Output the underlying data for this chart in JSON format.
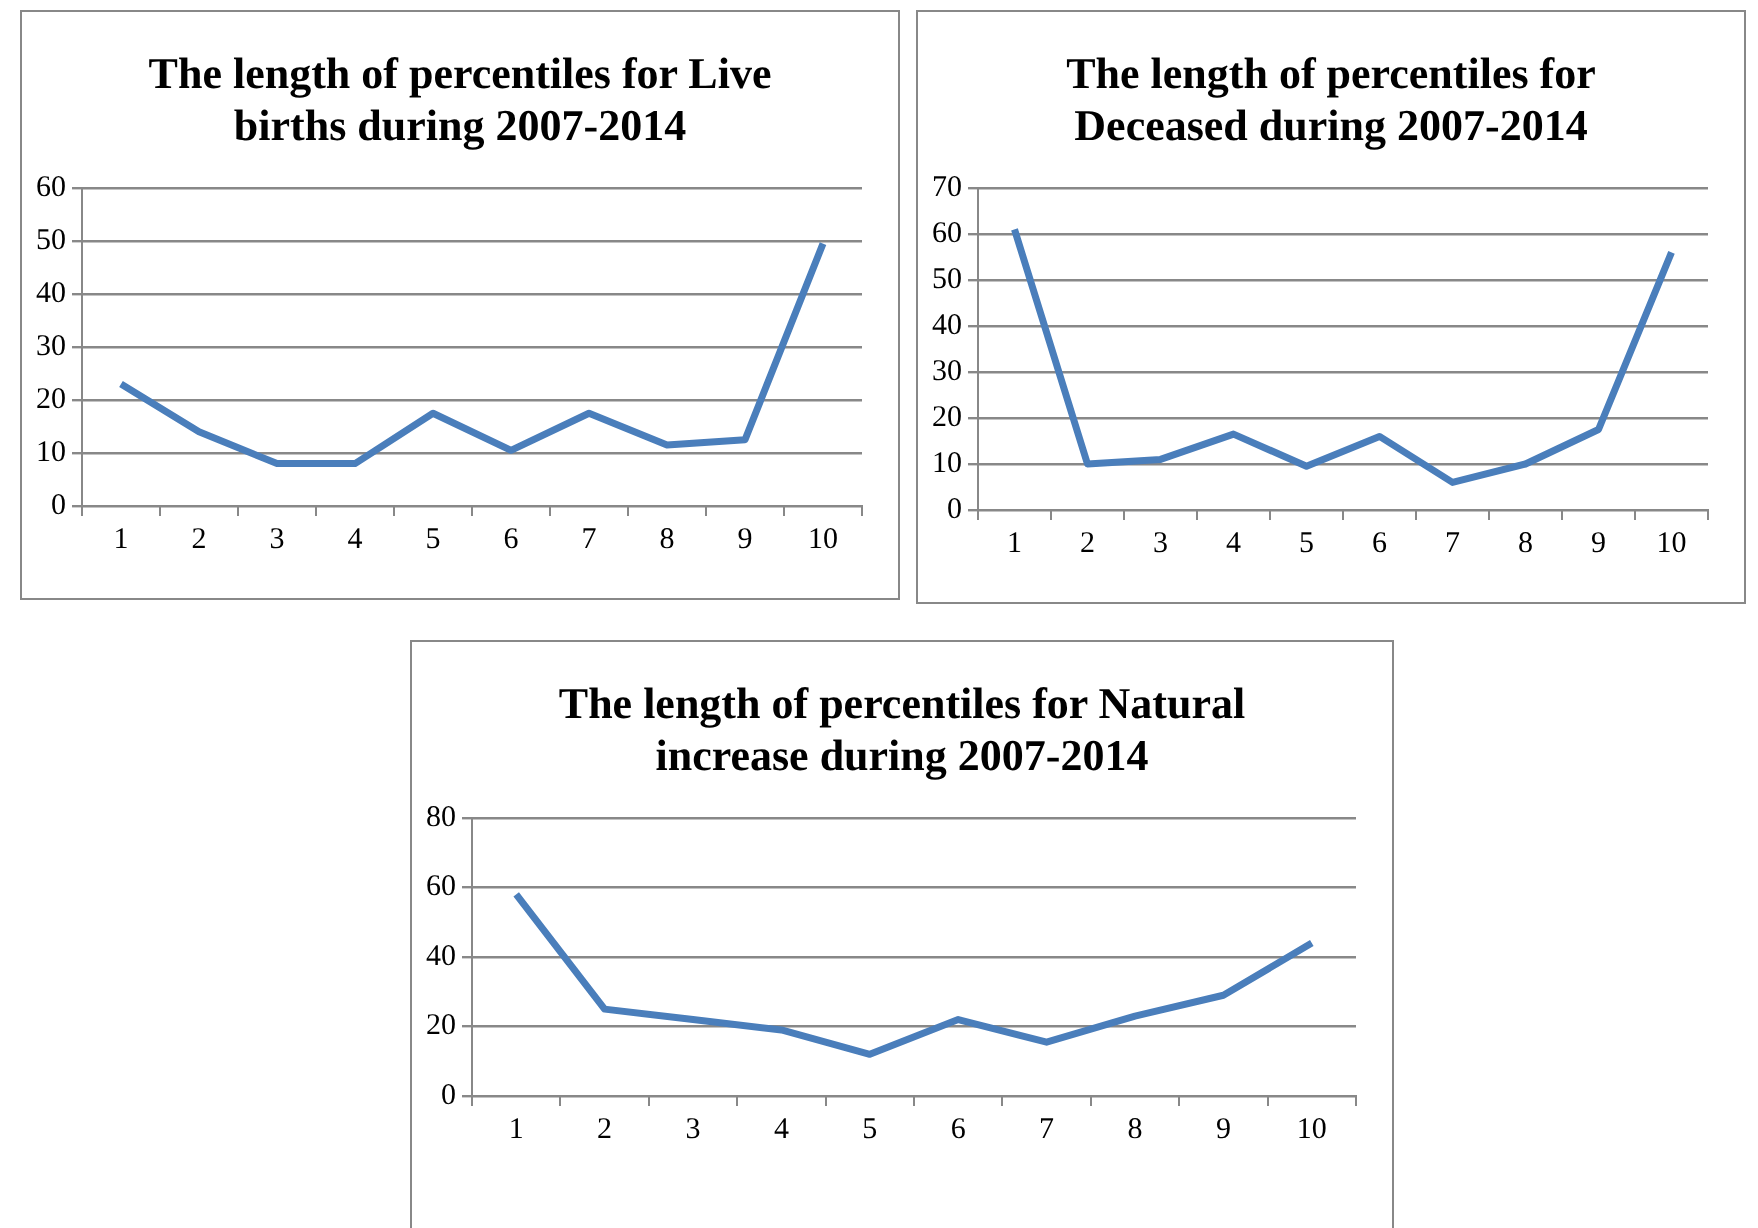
{
  "chart_data": [
    {
      "type": "line",
      "title": "The length of percentiles for Live births during 2007-2014",
      "categories": [
        "1",
        "2",
        "3",
        "4",
        "5",
        "6",
        "7",
        "8",
        "9",
        "10"
      ],
      "series": [
        {
          "color": "#4a7ebb",
          "values": [
            23,
            14,
            8,
            8,
            17.5,
            10.5,
            17.5,
            11.5,
            12.5,
            49.5
          ]
        }
      ],
      "ylim": [
        0,
        60
      ],
      "yticks": [
        0,
        10,
        20,
        30,
        40,
        50,
        60
      ],
      "grid": "y",
      "legend": false,
      "marker": "none",
      "line_style": "solid"
    },
    {
      "type": "line",
      "title": "The length of percentiles for Deceased  during 2007-2014",
      "categories": [
        "1",
        "2",
        "3",
        "4",
        "5",
        "6",
        "7",
        "8",
        "9",
        "10"
      ],
      "series": [
        {
          "color": "#4a7ebb",
          "values": [
            61,
            10,
            11,
            16.5,
            9.5,
            16,
            6,
            10,
            17.5,
            56
          ]
        }
      ],
      "ylim": [
        0,
        70
      ],
      "yticks": [
        0,
        10,
        20,
        30,
        40,
        50,
        60,
        70
      ],
      "grid": "y",
      "legend": false,
      "marker": "none",
      "line_style": "solid"
    },
    {
      "type": "line",
      "title": "The length of percentiles for Natural increase during 2007-2014",
      "categories": [
        "1",
        "2",
        "3",
        "4",
        "5",
        "6",
        "7",
        "8",
        "9",
        "10"
      ],
      "series": [
        {
          "color": "#4a7ebb",
          "values": [
            58,
            25,
            22,
            19,
            12,
            22,
            15.5,
            23,
            29,
            44
          ]
        }
      ],
      "ylim": [
        0,
        80
      ],
      "yticks": [
        0,
        20,
        40,
        60,
        80
      ],
      "grid": "y",
      "legend": false,
      "marker": "none",
      "line_style": "solid"
    }
  ]
}
